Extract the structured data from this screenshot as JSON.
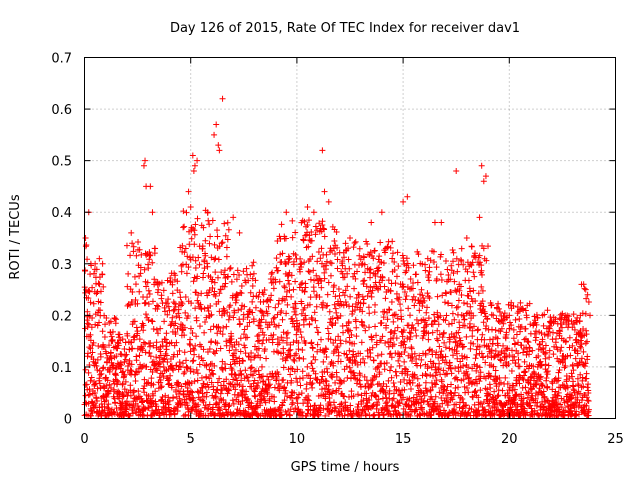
{
  "chart_data": {
    "type": "scatter",
    "title": "Day 126 of 2015, Rate Of TEC Index for receiver dav1",
    "xlabel": "GPS time / hours",
    "ylabel": "ROTI / TECUs",
    "xlim": [
      0,
      25
    ],
    "ylim": [
      0,
      0.7
    ],
    "x_ticks": [
      0,
      5,
      10,
      15,
      20,
      25
    ],
    "x_tick_labels": [
      "0",
      "5",
      "10",
      "15",
      "20",
      "25"
    ],
    "y_ticks": [
      0,
      0.1,
      0.2,
      0.3,
      0.4,
      0.5,
      0.6,
      0.7
    ],
    "y_tick_labels": [
      "0",
      "0.1",
      "0.2",
      "0.3",
      "0.4",
      "0.5",
      "0.6",
      "0.7"
    ],
    "grid": true,
    "marker": "plus",
    "color": "#ff0000",
    "series": [
      {
        "name": "ROTI",
        "points": [
          [
            0.05,
            0.35
          ],
          [
            0.2,
            0.4
          ],
          [
            0.3,
            0.3
          ],
          [
            0.5,
            0.3
          ],
          [
            0.7,
            0.31
          ],
          [
            2.2,
            0.36
          ],
          [
            2.8,
            0.49
          ],
          [
            2.85,
            0.5
          ],
          [
            2.9,
            0.45
          ],
          [
            3.1,
            0.45
          ],
          [
            3.2,
            0.4
          ],
          [
            4.9,
            0.44
          ],
          [
            5.0,
            0.41
          ],
          [
            5.1,
            0.51
          ],
          [
            5.15,
            0.48
          ],
          [
            5.2,
            0.49
          ],
          [
            5.3,
            0.5
          ],
          [
            5.6,
            0.37
          ],
          [
            5.8,
            0.4
          ],
          [
            6.1,
            0.55
          ],
          [
            6.2,
            0.57
          ],
          [
            6.3,
            0.53
          ],
          [
            6.35,
            0.52
          ],
          [
            6.5,
            0.62
          ],
          [
            7.0,
            0.39
          ],
          [
            7.3,
            0.36
          ],
          [
            9.5,
            0.4
          ],
          [
            10.5,
            0.41
          ],
          [
            10.8,
            0.4
          ],
          [
            11.2,
            0.52
          ],
          [
            11.3,
            0.44
          ],
          [
            11.5,
            0.42
          ],
          [
            12.5,
            0.35
          ],
          [
            13.5,
            0.38
          ],
          [
            14.0,
            0.4
          ],
          [
            15.0,
            0.42
          ],
          [
            15.2,
            0.43
          ],
          [
            16.5,
            0.38
          ],
          [
            16.8,
            0.38
          ],
          [
            17.5,
            0.48
          ],
          [
            18.0,
            0.35
          ],
          [
            18.7,
            0.49
          ],
          [
            18.8,
            0.46
          ],
          [
            18.9,
            0.47
          ],
          [
            18.6,
            0.39
          ],
          [
            18.8,
            0.33
          ],
          [
            20.0,
            0.2
          ],
          [
            21.8,
            0.21
          ],
          [
            23.4,
            0.26
          ],
          [
            23.6,
            0.25
          ],
          [
            23.8,
            0.2
          ]
        ]
      }
    ]
  }
}
